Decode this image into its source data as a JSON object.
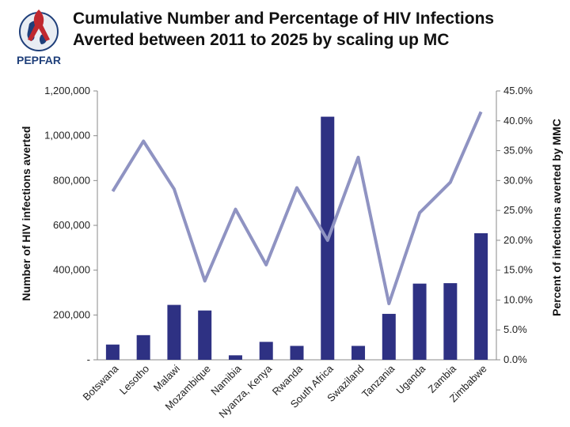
{
  "header": {
    "title_line1": "Cumulative Number and Percentage of HIV Infections",
    "title_line2": "Averted between 2011 to 2025 by scaling up MC",
    "logo_text": "PEPFAR"
  },
  "colors": {
    "bar": "#2e3183",
    "line": "#8f93c2",
    "logo_red": "#c0282f",
    "logo_blue": "#1f3f7a"
  },
  "chart_data": {
    "type": "bar",
    "title": "Cumulative Number and Percentage of HIV Infections Averted between 2011 to 2025 by scaling up MC",
    "categories": [
      "Botswana",
      "Lesotho",
      "Malawi",
      "Mozambique",
      "Namibia",
      "Nyanza, Kenya",
      "Rwanda",
      "South Africa",
      "Swaziland",
      "Tanzania",
      "Uganda",
      "Zambia",
      "Zimbabwe"
    ],
    "ylabel": "Number of HIV infections averted",
    "y2label": "Percent of infections averted by MMC",
    "ylim": [
      0,
      1200000
    ],
    "y2lim": [
      0,
      45
    ],
    "yticks": [
      {
        "value": 0,
        "label": "-"
      },
      {
        "value": 200000,
        "label": "200,000"
      },
      {
        "value": 400000,
        "label": "400,000"
      },
      {
        "value": 600000,
        "label": "600,000"
      },
      {
        "value": 800000,
        "label": "800,000"
      },
      {
        "value": 1000000,
        "label": "1,000,000"
      },
      {
        "value": 1200000,
        "label": "1,200,000"
      }
    ],
    "y2ticks": [
      {
        "value": 0,
        "label": "0.0%"
      },
      {
        "value": 5,
        "label": "5.0%"
      },
      {
        "value": 10,
        "label": "10.0%"
      },
      {
        "value": 15,
        "label": "15.0%"
      },
      {
        "value": 20,
        "label": "20.0%"
      },
      {
        "value": 25,
        "label": "25.0%"
      },
      {
        "value": 30,
        "label": "30.0%"
      },
      {
        "value": 35,
        "label": "35.0%"
      },
      {
        "value": 40,
        "label": "40.0%"
      },
      {
        "value": 45,
        "label": "45.0%"
      }
    ],
    "series": [
      {
        "name": "Number of HIV infections averted",
        "kind": "bar",
        "axis": "left",
        "values": [
          68000,
          110000,
          245000,
          220000,
          20000,
          80000,
          62000,
          1085000,
          62000,
          205000,
          340000,
          342000,
          565000
        ]
      },
      {
        "name": "Percent of infections averted by MMC",
        "kind": "line",
        "axis": "right",
        "values": [
          28.2,
          36.6,
          28.6,
          13.2,
          25.2,
          15.9,
          28.8,
          20.0,
          33.9,
          9.4,
          24.6,
          29.7,
          41.5
        ]
      }
    ],
    "grid": false,
    "legend": "none"
  }
}
